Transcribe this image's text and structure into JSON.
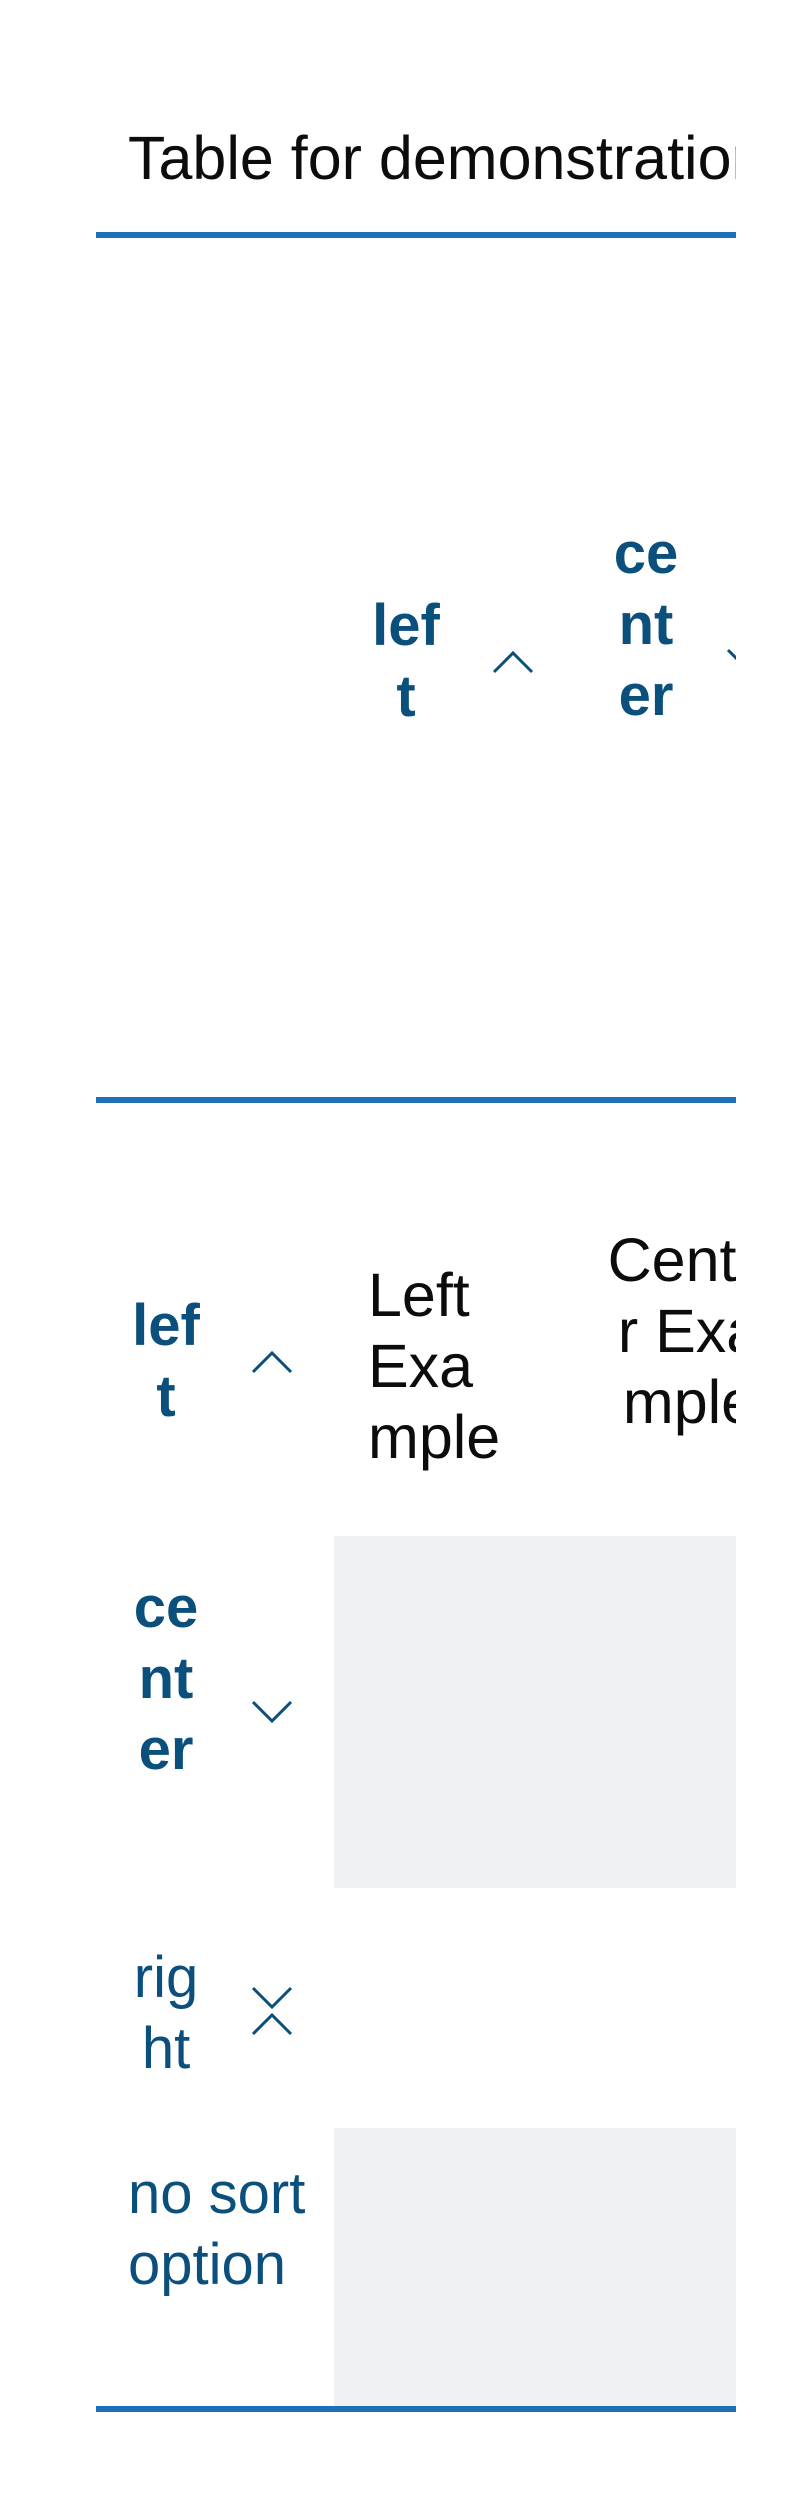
{
  "table": {
    "caption": "Table for demonstration of sort options",
    "column_headers": [
      {
        "label": "left",
        "sort": "ascending"
      },
      {
        "label": "center",
        "sort": "descending"
      }
    ],
    "row_headers": [
      {
        "label": "left",
        "sort": "ascending"
      },
      {
        "label": "center",
        "sort": "descending"
      },
      {
        "label": "right",
        "sort": "none"
      },
      {
        "label": "no sort option"
      }
    ],
    "cells": {
      "left_example": "Left Example",
      "center_example": "Center Example"
    }
  },
  "colors": {
    "accent": "#1d70b8",
    "header_text": "#0b4f7c",
    "body_text": "#0b0c0c",
    "zebra": "#f0f1f3"
  }
}
